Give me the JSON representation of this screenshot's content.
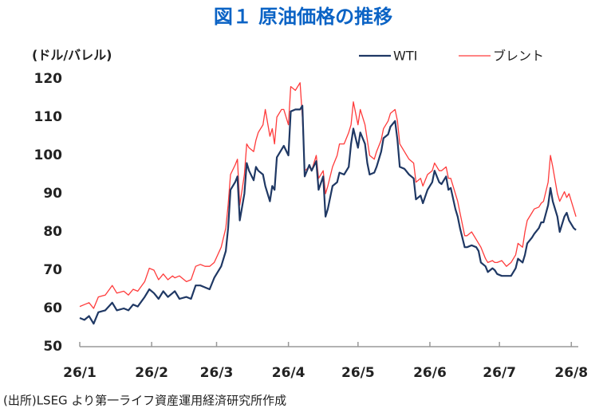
{
  "chart_data": {
    "type": "line",
    "title": "図１ 原油価格の推移",
    "y_label": "(ドル/バレル)",
    "source": "(出所)LSEG より第一ライフ資産運用経済研究所作成",
    "x": [
      0,
      2,
      4,
      6,
      8,
      11,
      14,
      16,
      19,
      21,
      23,
      25,
      28,
      30,
      32,
      34,
      36,
      38,
      40,
      41,
      43,
      46,
      48,
      50,
      52,
      54,
      56,
      58,
      61,
      63,
      64,
      65,
      67,
      68,
      69,
      71,
      72,
      73,
      75,
      76,
      77,
      79,
      80,
      82,
      83,
      84,
      85,
      87,
      88,
      90,
      91,
      93,
      95,
      96,
      97,
      99,
      100,
      102,
      103,
      105,
      106,
      107,
      109,
      111,
      112,
      114,
      116,
      117,
      118,
      120,
      121,
      123,
      124,
      125,
      127,
      128,
      130,
      131,
      133,
      134,
      136,
      137,
      138,
      140,
      142,
      144,
      145,
      147,
      148,
      150,
      152,
      153,
      155,
      156,
      158,
      159,
      160,
      162,
      163,
      164,
      166,
      167,
      169,
      171,
      172,
      173,
      175,
      176,
      178,
      179,
      180,
      182,
      184,
      186,
      188,
      189,
      191,
      192,
      193,
      195,
      196,
      198,
      199,
      200,
      202,
      203,
      204,
      206,
      207,
      209,
      210,
      211,
      213,
      214
    ],
    "series": [
      {
        "name": "WTI",
        "color": "#1f3864",
        "values": [
          57.5,
          57,
          58,
          56,
          59,
          59.5,
          61.5,
          59.5,
          60,
          59.5,
          61,
          60.5,
          63,
          65,
          64,
          62.5,
          64.5,
          63,
          64,
          64.5,
          62.5,
          63,
          62.5,
          66,
          66,
          65.5,
          65,
          68,
          71,
          75,
          81,
          91,
          93,
          94.5,
          83,
          90,
          98,
          96,
          93.5,
          97,
          96,
          95,
          92,
          88,
          92,
          91,
          99.5,
          101.5,
          102.5,
          100,
          111.5,
          112,
          112,
          113,
          94.5,
          97.5,
          96,
          98.5,
          91,
          94.5,
          84,
          86,
          92,
          93,
          95.5,
          95,
          97,
          103,
          107,
          102,
          106,
          103,
          98,
          95,
          95.5,
          97,
          101,
          104.5,
          105.5,
          107.5,
          109,
          104,
          97,
          96.5,
          95,
          94,
          88.5,
          89.5,
          87.5,
          91,
          93,
          96,
          93,
          92.5,
          94.5,
          91,
          91.5,
          86,
          84,
          81,
          76,
          76,
          76.5,
          76,
          75,
          72,
          71,
          69.5,
          70.5,
          70,
          69,
          68.5,
          68.5,
          68.5,
          70.5,
          73,
          72,
          74,
          77,
          78.5,
          79.5,
          81,
          82.5,
          82.5,
          87,
          91.5,
          88,
          84,
          80,
          84,
          85,
          83,
          81,
          80.5
        ]
      },
      {
        "name": "ブレント",
        "color": "#ff3b3b",
        "values": [
          60.5,
          61,
          61.5,
          60,
          63,
          63.5,
          66,
          64,
          64.5,
          63.5,
          65,
          64.5,
          67,
          70.5,
          70,
          67.5,
          69,
          67.5,
          68.5,
          68,
          68.5,
          67,
          67.5,
          71,
          71.5,
          71,
          71,
          72,
          76,
          81,
          87,
          95,
          97.5,
          99,
          87,
          95,
          103,
          102,
          101,
          104,
          106,
          108,
          112,
          105,
          107,
          103,
          110,
          112,
          112,
          108,
          118,
          117,
          119,
          110,
          96,
          97,
          96,
          100,
          94,
          96,
          90,
          92,
          97,
          100,
          103,
          103,
          106,
          108,
          114,
          108,
          112,
          108,
          104,
          100,
          99,
          101,
          104,
          107,
          109,
          111,
          112,
          109,
          103,
          101,
          99,
          98,
          93,
          94,
          92,
          95,
          96,
          98,
          96,
          96,
          97,
          94,
          94,
          90,
          88,
          85,
          79,
          79,
          80,
          78,
          77,
          76,
          73,
          72,
          72.5,
          72,
          72,
          72.5,
          71,
          72,
          74,
          77,
          76,
          80,
          83,
          85,
          86,
          86.5,
          87.5,
          88,
          93,
          100,
          97,
          90,
          88,
          90.5,
          89,
          90,
          86,
          84
        ]
      }
    ],
    "xlim": [
      0,
      215
    ],
    "xticks": [
      {
        "value": 0,
        "label": "26/1"
      },
      {
        "value": 31,
        "label": "26/2"
      },
      {
        "value": 59,
        "label": "26/3"
      },
      {
        "value": 90,
        "label": "26/4"
      },
      {
        "value": 120,
        "label": "26/5"
      },
      {
        "value": 151,
        "label": "26/6"
      },
      {
        "value": 181,
        "label": "26/7"
      },
      {
        "value": 212,
        "label": "26/8"
      }
    ],
    "ylim": [
      50,
      120
    ],
    "yticks": [
      50,
      60,
      70,
      80,
      90,
      100,
      110,
      120
    ],
    "grid": false,
    "legend": "top-right"
  }
}
